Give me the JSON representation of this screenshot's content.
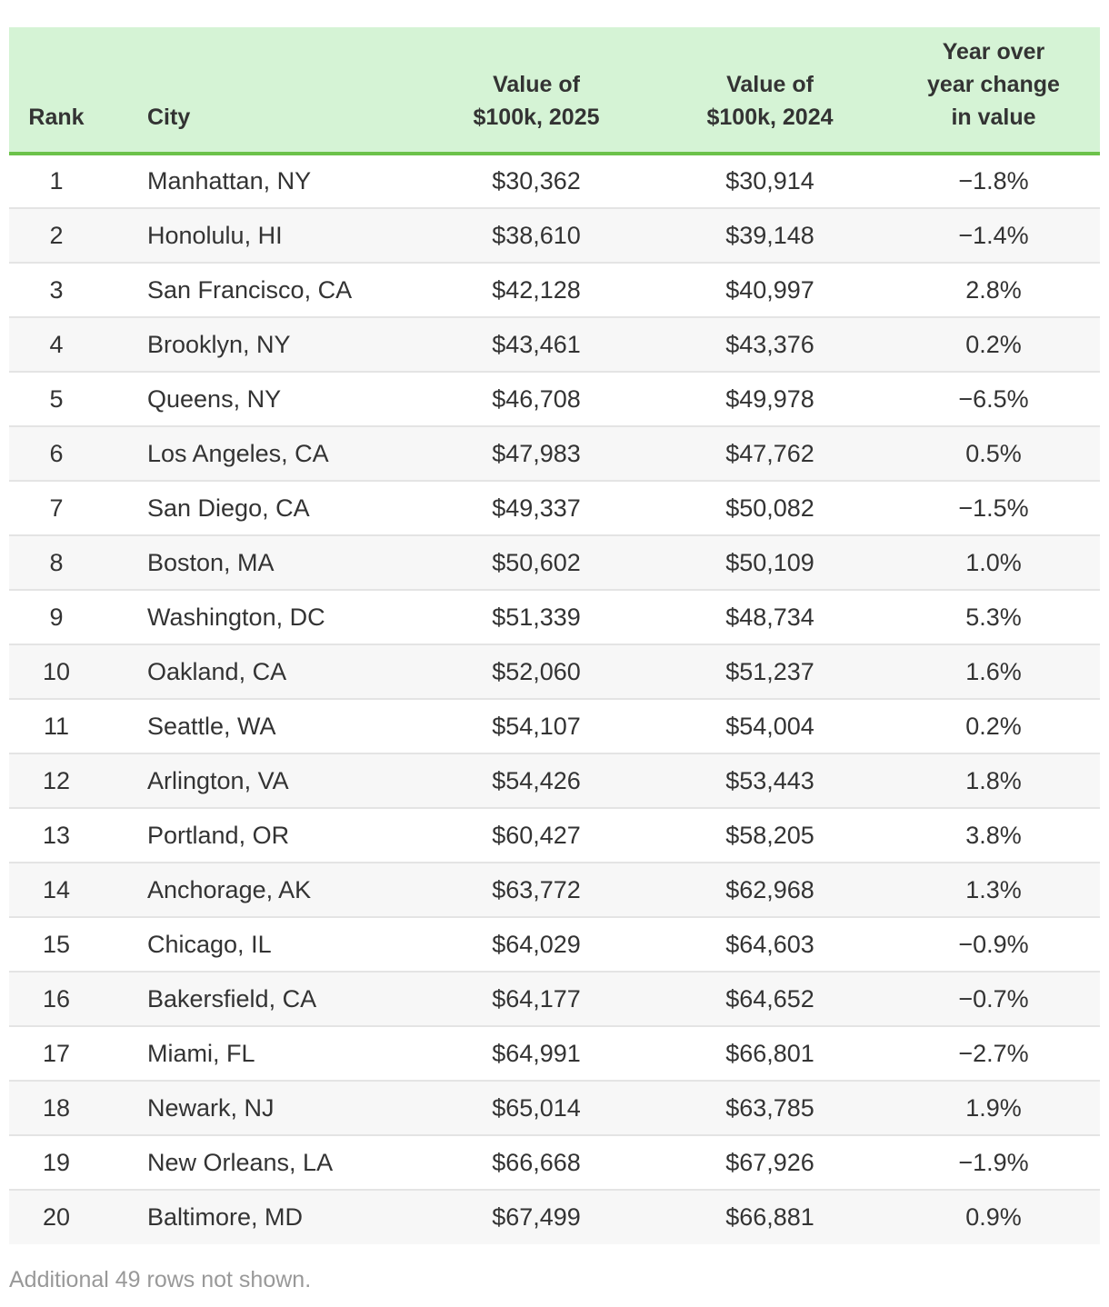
{
  "table": {
    "headers": {
      "rank": "Rank",
      "city": "City",
      "value_2025": [
        "Value of",
        "$100k, 2025"
      ],
      "value_2024": [
        "Value of",
        "$100k, 2024"
      ],
      "change": [
        "Year over",
        "year change",
        "in value"
      ]
    },
    "rows": [
      {
        "rank": "1",
        "city": "Manhattan, NY",
        "value_2025": "$30,362",
        "value_2024": "$30,914",
        "change": "−1.8%"
      },
      {
        "rank": "2",
        "city": "Honolulu, HI",
        "value_2025": "$38,610",
        "value_2024": "$39,148",
        "change": "−1.4%"
      },
      {
        "rank": "3",
        "city": "San Francisco, CA",
        "value_2025": "$42,128",
        "value_2024": "$40,997",
        "change": "2.8%"
      },
      {
        "rank": "4",
        "city": "Brooklyn, NY",
        "value_2025": "$43,461",
        "value_2024": "$43,376",
        "change": "0.2%"
      },
      {
        "rank": "5",
        "city": "Queens, NY",
        "value_2025": "$46,708",
        "value_2024": "$49,978",
        "change": "−6.5%"
      },
      {
        "rank": "6",
        "city": "Los Angeles, CA",
        "value_2025": "$47,983",
        "value_2024": "$47,762",
        "change": "0.5%"
      },
      {
        "rank": "7",
        "city": "San Diego, CA",
        "value_2025": "$49,337",
        "value_2024": "$50,082",
        "change": "−1.5%"
      },
      {
        "rank": "8",
        "city": "Boston, MA",
        "value_2025": "$50,602",
        "value_2024": "$50,109",
        "change": "1.0%"
      },
      {
        "rank": "9",
        "city": "Washington, DC",
        "value_2025": "$51,339",
        "value_2024": "$48,734",
        "change": "5.3%"
      },
      {
        "rank": "10",
        "city": "Oakland, CA",
        "value_2025": "$52,060",
        "value_2024": "$51,237",
        "change": "1.6%"
      },
      {
        "rank": "11",
        "city": "Seattle, WA",
        "value_2025": "$54,107",
        "value_2024": "$54,004",
        "change": "0.2%"
      },
      {
        "rank": "12",
        "city": "Arlington, VA",
        "value_2025": "$54,426",
        "value_2024": "$53,443",
        "change": "1.8%"
      },
      {
        "rank": "13",
        "city": "Portland, OR",
        "value_2025": "$60,427",
        "value_2024": "$58,205",
        "change": "3.8%"
      },
      {
        "rank": "14",
        "city": "Anchorage, AK",
        "value_2025": "$63,772",
        "value_2024": "$62,968",
        "change": "1.3%"
      },
      {
        "rank": "15",
        "city": "Chicago, IL",
        "value_2025": "$64,029",
        "value_2024": "$64,603",
        "change": "−0.9%"
      },
      {
        "rank": "16",
        "city": "Bakersfield, CA",
        "value_2025": "$64,177",
        "value_2024": "$64,652",
        "change": "−0.7%"
      },
      {
        "rank": "17",
        "city": "Miami, FL",
        "value_2025": "$64,991",
        "value_2024": "$66,801",
        "change": "−2.7%"
      },
      {
        "rank": "18",
        "city": "Newark, NJ",
        "value_2025": "$65,014",
        "value_2024": "$63,785",
        "change": "1.9%"
      },
      {
        "rank": "19",
        "city": "New Orleans, LA",
        "value_2025": "$66,668",
        "value_2024": "$67,926",
        "change": "−1.9%"
      },
      {
        "rank": "20",
        "city": "Baltimore, MD",
        "value_2025": "$67,499",
        "value_2024": "$66,881",
        "change": "0.9%"
      }
    ]
  },
  "footnote": "Additional 49 rows not shown.",
  "colors": {
    "header_bg": "#d5f3d5",
    "header_rule": "#6cc24a",
    "stripe": "#f7f7f7",
    "text": "#333333",
    "footnote": "#999999"
  }
}
